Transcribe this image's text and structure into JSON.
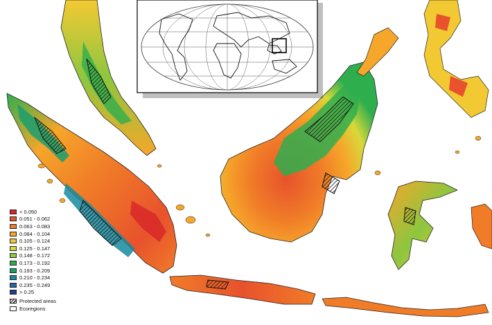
{
  "legend": {
    "classes": [
      {
        "label": "< 0.050",
        "color": "#d7262b"
      },
      {
        "label": "0.051 - 0.062",
        "color": "#e8522c"
      },
      {
        "label": "0.063 - 0.083",
        "color": "#f07c28"
      },
      {
        "label": "0.084 - 0.104",
        "color": "#f6a62a"
      },
      {
        "label": "0.105 - 0.124",
        "color": "#f3c933"
      },
      {
        "label": "0.125 - 0.147",
        "color": "#d7d93a"
      },
      {
        "label": "0.148 - 0.172",
        "color": "#8dc63f"
      },
      {
        "label": "0.173 - 0.192",
        "color": "#2fae4e"
      },
      {
        "label": "0.193 - 0.209",
        "color": "#1a9d6f"
      },
      {
        "label": "0.210 - 0.234",
        "color": "#168a9e"
      },
      {
        "label": "0.235 - 0.249",
        "color": "#2667a8"
      },
      {
        "label": "> 0.25",
        "color": "#233f8f"
      }
    ],
    "protected_label": "Protected areas",
    "ecoregions_label": "Ecoregions"
  },
  "colors": {
    "background": "#ffffff",
    "inset_border": "#000000",
    "ecoregion_line": "#5a3a1a"
  },
  "inset": {
    "description_icon": "world-locator-map"
  }
}
